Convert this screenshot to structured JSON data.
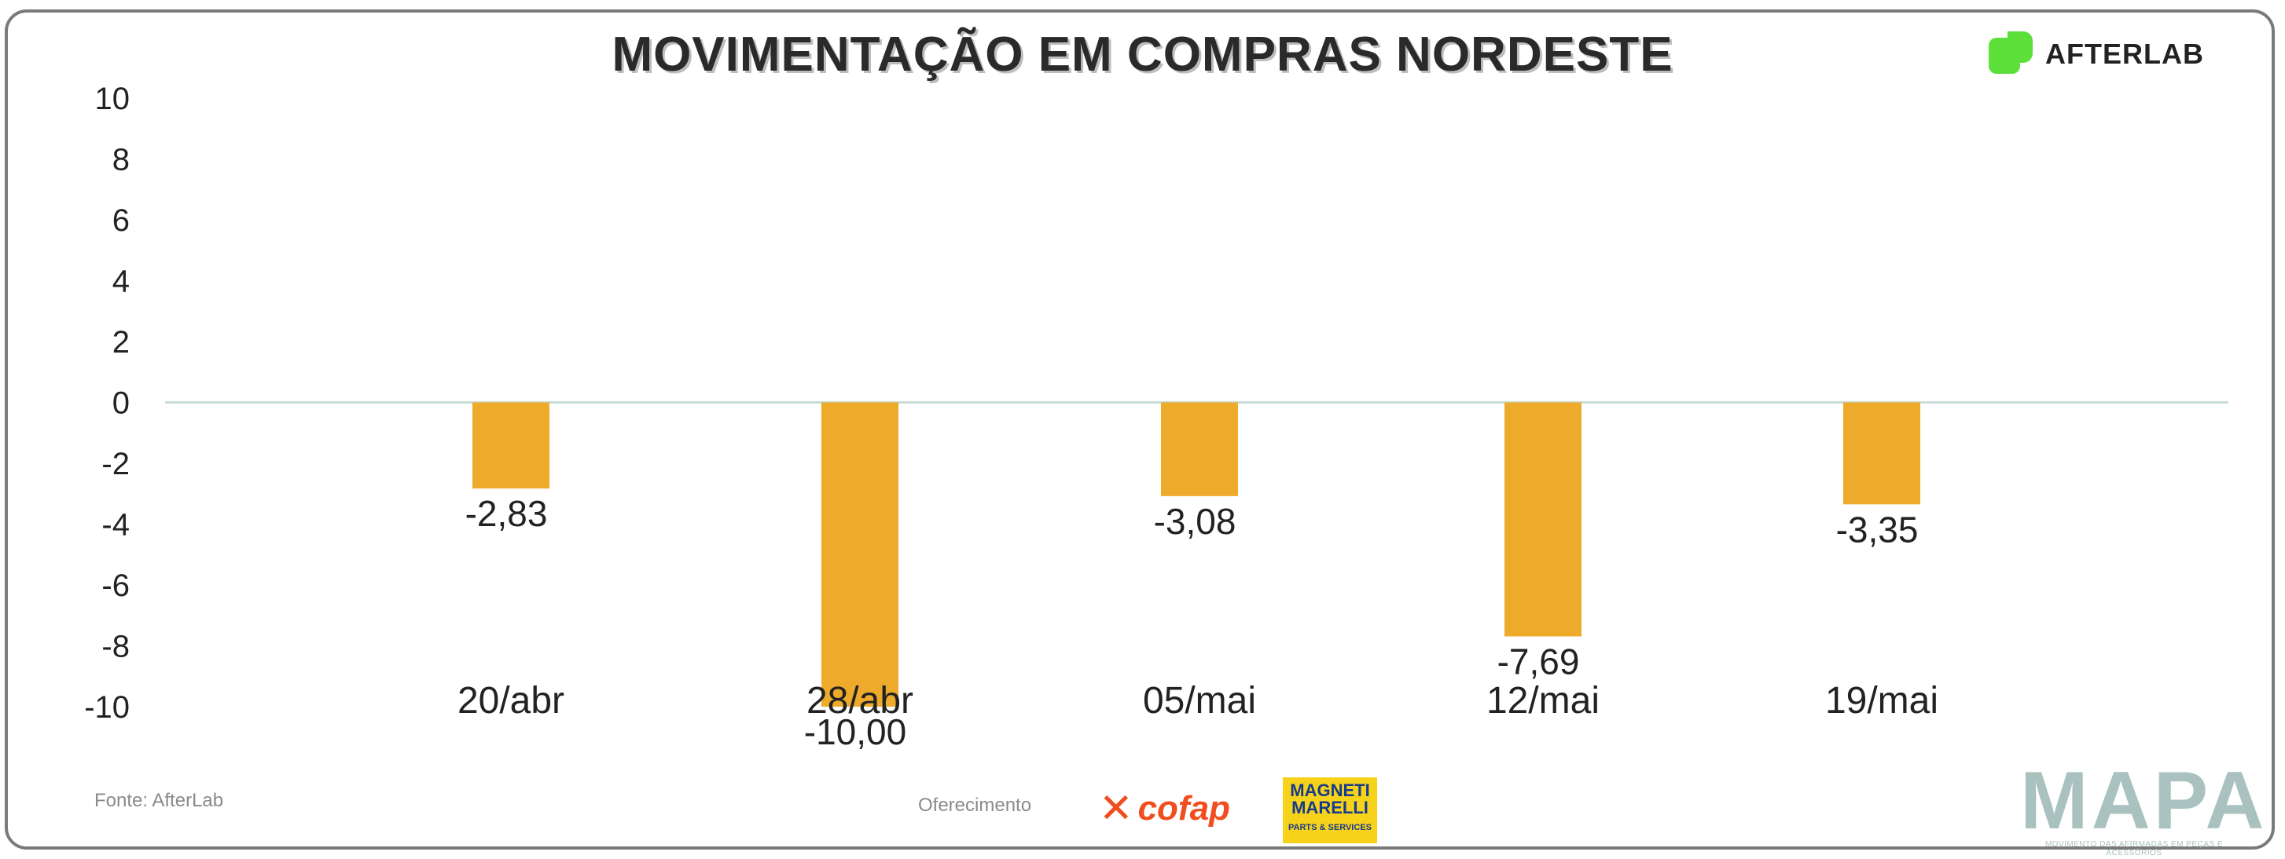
{
  "title": "MOVIMENTAÇÃO EM COMPRAS NORDESTE",
  "brand": {
    "name": "AFTERLAB",
    "accent": "#5ee03a"
  },
  "footer": {
    "source": "Fonte: AfterLab",
    "sponsor_label": "Oferecimento",
    "sponsor_1": "cofap",
    "sponsor_2_line1": "MAGNETI",
    "sponsor_2_line2": "MARELLI",
    "sponsor_2_tag": "PARTS & SERVICES",
    "mapa": "MAPA",
    "mapa_tagline": "MOVIMENTO DAS AFIRMADAS EM PEÇAS E ACESSÓRIOS"
  },
  "chart_data": {
    "type": "bar",
    "title": "MOVIMENTAÇÃO EM COMPRAS NORDESTE",
    "xlabel": "",
    "ylabel": "",
    "categories": [
      "20/abr",
      "28/abr",
      "05/mai",
      "12/mai",
      "19/mai"
    ],
    "values": [
      -2.83,
      -10.0,
      -3.08,
      -7.69,
      -3.35
    ],
    "value_labels": [
      "-2,83",
      "-10,00",
      "-3,08",
      "-7,69",
      "-3,35"
    ],
    "yticks": [
      "10",
      "8",
      "6",
      "4",
      "2",
      "0",
      "-2",
      "-4",
      "-6",
      "-8",
      "-10"
    ],
    "ylim": [
      -10,
      10
    ],
    "bar_color": "#edaa2b",
    "zero_line_color": "#c8dcd8",
    "grid": false,
    "legend": "none"
  }
}
